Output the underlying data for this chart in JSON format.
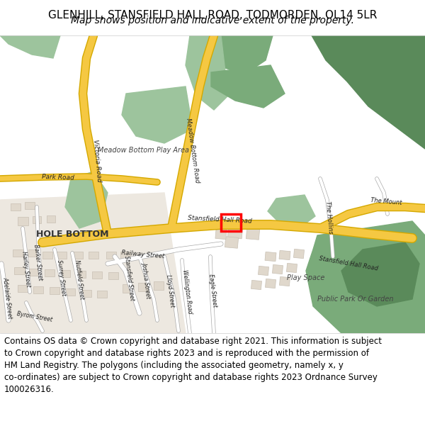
{
  "title_line1": "GLENHILL, STANSFIELD HALL ROAD, TODMORDEN, OL14 5LR",
  "title_line2": "Map shows position and indicative extent of the property.",
  "footer_text": "Contains OS data © Crown copyright and database right 2021. This information is subject\nto Crown copyright and database rights 2023 and is reproduced with the permission of\nHM Land Registry. The polygons (including the associated geometry, namely x, y\nco-ordinates) are subject to Crown copyright and database rights 2023 Ordnance Survey\n100026316.",
  "map_bg": "#f2efe9",
  "road_color": "#f5c842",
  "road_outline": "#d4a800",
  "minor_road_color": "#ffffff",
  "minor_road_outline": "#aaaaaa",
  "green_dark": "#5a8a5a",
  "green_light": "#9dc49d",
  "green_med": "#7aab7a",
  "building_color": "#e0d8cc",
  "building_outline": "#c8c0b4",
  "marker_color": "#ff0000",
  "title_fontsize": 11,
  "subtitle_fontsize": 10,
  "footer_fontsize": 8.5,
  "header_bg": "#ffffff",
  "footer_bg": "#ffffff",
  "label_color": "#222222",
  "area_label_color": "#444444"
}
